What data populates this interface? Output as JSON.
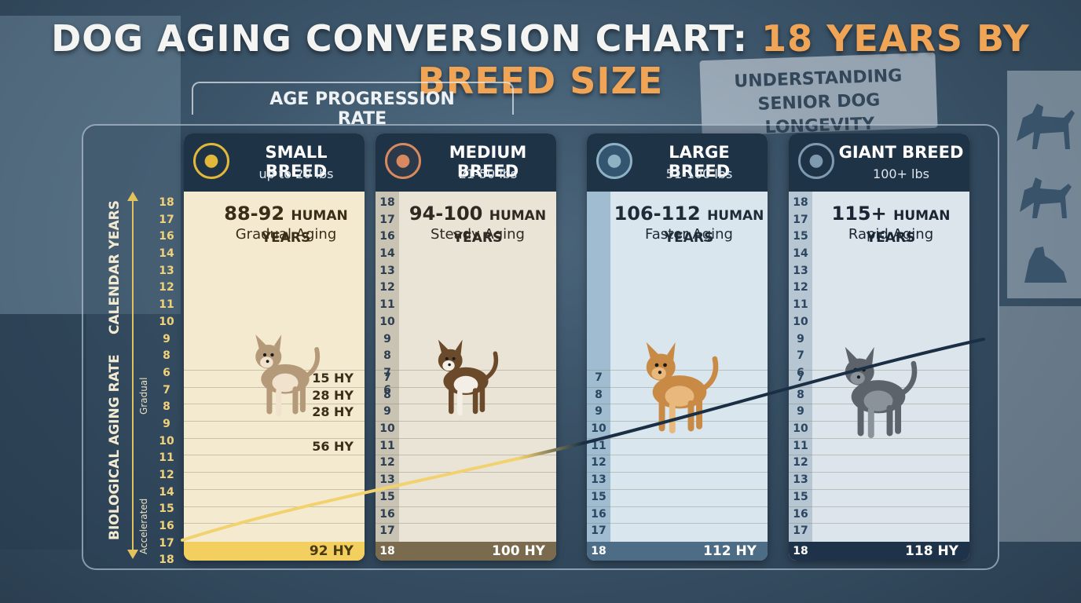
{
  "title": {
    "main": "DOG AGING CONVERSION CHART:",
    "accent": "18 YEARS BY BREED SIZE"
  },
  "background_sign": {
    "line1": "UNDERSTANDING",
    "line2": "SENIOR DOG LONGEVITY"
  },
  "progression_label": "AGE PROGRESSION RATE",
  "axis": {
    "calendar": "CALENDAR YEARS",
    "biological": "BIOLOGICAL AGING RATE",
    "gradual": "Gradual",
    "accelerated": "Accelerated"
  },
  "outer_years": [
    "18",
    "17",
    "16",
    "14",
    "13",
    "12",
    "11",
    "10",
    "9",
    "8",
    "6",
    "7",
    "8",
    "9",
    "10",
    "11",
    "12",
    "14",
    "15",
    "16",
    "17",
    "18"
  ],
  "columns": [
    {
      "id": "small",
      "title": "SMALL BREED",
      "weight": "up to 20 lbs",
      "hy_range": "88-92",
      "hy_word": "HUMAN YEARS",
      "aging": "Gradual Aging",
      "lane_top": [],
      "lane_bottom": [],
      "marks": [
        {
          "row": 0,
          "text": "15 HY"
        },
        {
          "row": 1,
          "text": "28 HY"
        },
        {
          "row": 2,
          "text": "28 HY"
        },
        {
          "row": 4,
          "text": "56 HY"
        }
      ],
      "last_year": "",
      "final": "92 HY",
      "icon": "chihuahua-icon"
    },
    {
      "id": "medium",
      "title": "MEDIUM BREED",
      "weight": "21-50 lbs",
      "hy_range": "94-100",
      "hy_word": "HUMAN YEARS",
      "aging": "Steady Aging",
      "lane_top": [
        "18",
        "17",
        "16",
        "14",
        "13",
        "12",
        "11",
        "10",
        "9",
        "8",
        "7",
        "6"
      ],
      "lane_bottom": [
        "7",
        "8",
        "9",
        "10",
        "11",
        "12",
        "13",
        "15",
        "16",
        "17"
      ],
      "marks": [],
      "last_year": "18",
      "final": "100 HY",
      "icon": "beagle-icon"
    },
    {
      "id": "large",
      "title": "LARGE BREED",
      "weight": "51-100 lbs",
      "hy_range": "106-112",
      "hy_word": "HUMAN YEARS",
      "aging": "Faster Aging",
      "lane_top": [],
      "lane_bottom": [
        "7",
        "8",
        "9",
        "10",
        "11",
        "12",
        "13",
        "15",
        "16",
        "17"
      ],
      "marks": [],
      "last_year": "18",
      "final": "112 HY",
      "icon": "retriever-icon"
    },
    {
      "id": "giant",
      "title": "GIANT BREED",
      "weight": "100+ lbs",
      "hy_range": "115+",
      "hy_word": "HUMAN YEARS",
      "aging": "Rapid Aging",
      "lane_top": [
        "18",
        "17",
        "15",
        "14",
        "13",
        "12",
        "11",
        "10",
        "9",
        "7",
        "6"
      ],
      "lane_bottom": [
        "7",
        "8",
        "9",
        "10",
        "11",
        "12",
        "13",
        "15",
        "16",
        "17"
      ],
      "marks": [],
      "last_year": "18",
      "final": "118 HY",
      "icon": "great-dane-icon"
    }
  ],
  "colors": {
    "small_bg": "#f4ead0",
    "medium_bg": "#e9e4d6",
    "large_bg": "#d9e6ee",
    "giant_bg": "#dde5ec",
    "curve_start": "#f2d26e",
    "curve_end": "#1b2f44"
  }
}
